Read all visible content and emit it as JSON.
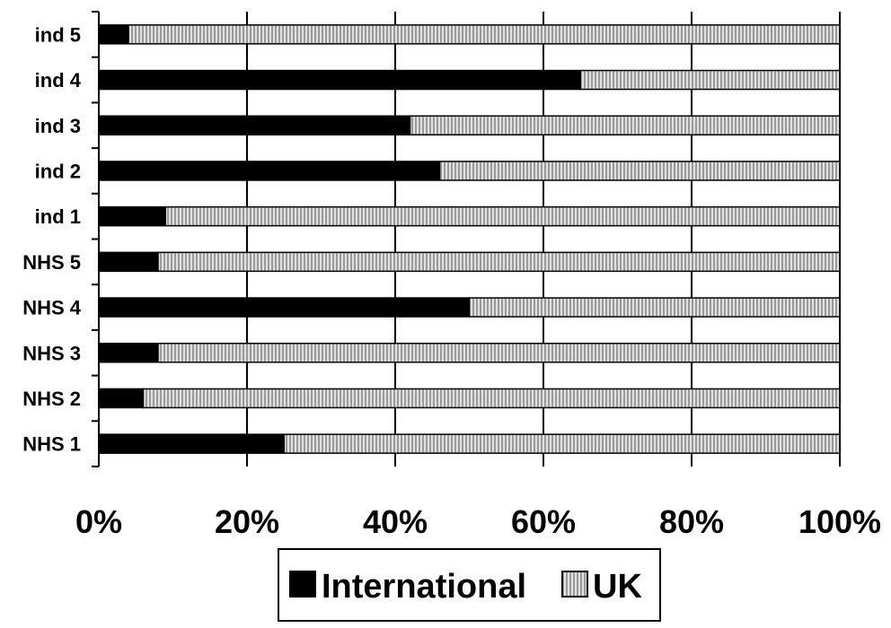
{
  "chart_data": {
    "type": "bar",
    "orientation": "horizontal",
    "stacked": "percent",
    "categories": [
      "NHS 1",
      "NHS 2",
      "NHS 3",
      "NHS 4",
      "NHS 5",
      "ind 1",
      "ind 2",
      "ind 3",
      "ind 4",
      "ind 5"
    ],
    "series": [
      {
        "name": "International",
        "values": [
          25,
          6,
          8,
          50,
          8,
          9,
          46,
          42,
          65,
          4
        ]
      },
      {
        "name": "UK",
        "values": [
          75,
          94,
          92,
          50,
          92,
          91,
          54,
          58,
          35,
          96
        ]
      }
    ],
    "x_ticks": [
      "0%",
      "20%",
      "40%",
      "60%",
      "80%",
      "100%"
    ],
    "xlim": [
      0,
      100
    ],
    "grid": "vertical",
    "legend_position": "bottom",
    "colors": {
      "International": "#000000",
      "UK": "#9a9a9a",
      "UK_hatch": "#d8d8d8"
    }
  }
}
